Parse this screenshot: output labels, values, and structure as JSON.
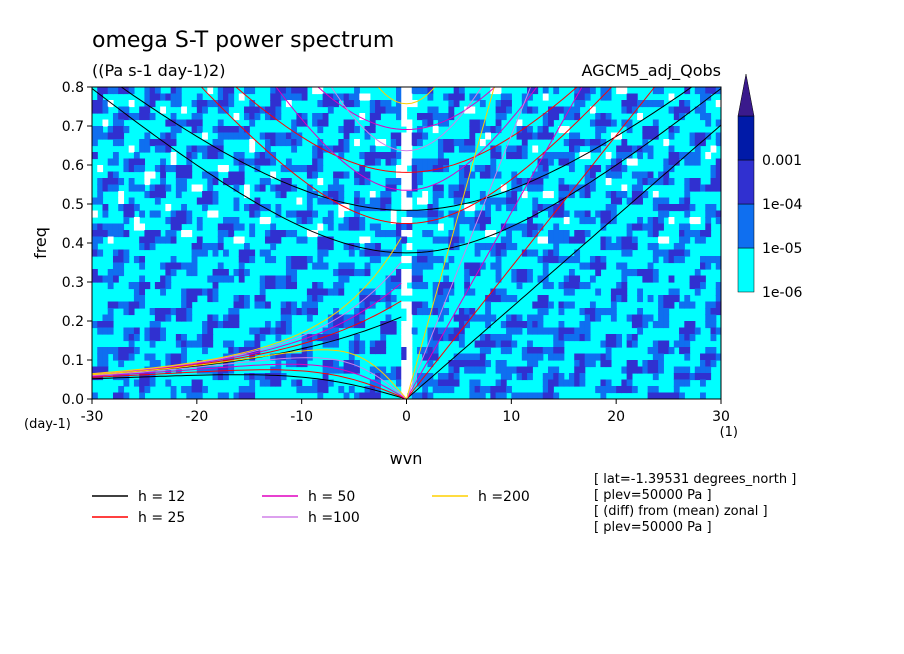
{
  "chart_data": {
    "type": "heatmap",
    "title": "omega S-T power spectrum",
    "subtitle": "((Pa s-1 day-1)2)",
    "dataset": "AGCM5_adj_Qobs",
    "xlabel": "wvn",
    "xunit": "(1)",
    "ylabel": "freq",
    "yunit": "(day-1)",
    "xlim": [
      -30,
      30
    ],
    "ylim": [
      0,
      0.8
    ],
    "xticks": [
      -30,
      -20,
      -10,
      0,
      10,
      20,
      30
    ],
    "yticks": [
      0.0,
      0.1,
      0.2,
      0.3,
      0.4,
      0.5,
      0.6,
      0.7,
      0.8
    ],
    "grid": false,
    "colorbar": {
      "placement": "right",
      "levels": [
        "1e-06",
        "1e-05",
        "1e-04",
        "0.001"
      ],
      "colors": [
        "#00ffff",
        "#0f6ff0",
        "#3030d0",
        "#001aa8",
        "#3a1a8c"
      ]
    },
    "dispersion_curves": [
      {
        "name": "h = 12",
        "h": 12,
        "color": "#000000"
      },
      {
        "name": "h = 25",
        "h": 25,
        "color": "#ff0000"
      },
      {
        "name": "h = 50",
        "h": 50,
        "color": "#e000c0"
      },
      {
        "name": "h =100",
        "h": 100,
        "color": "#d080e8"
      },
      {
        "name": "h =200",
        "h": 200,
        "color": "#ffd000"
      }
    ],
    "info": [
      "[ lat=-1.39531 degrees_north ]",
      "[ plev=50000 Pa ]",
      "[ (diff) from (mean) zonal ]",
      "[ plev=50000 Pa ]"
    ]
  }
}
